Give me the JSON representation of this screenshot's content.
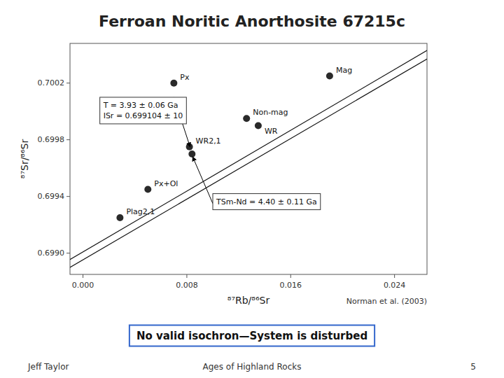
{
  "chart_data": {
    "type": "scatter",
    "title": "Ferroan Noritic Anorthosite 67215c",
    "x_label": "⁸⁷Rb/⁸⁶Sr",
    "y_label": "⁸⁷Sr/⁸⁶Sr",
    "xlim": [
      -0.001,
      0.0265
    ],
    "ylim": [
      0.69885,
      0.70048
    ],
    "xticks": [
      {
        "value": 0.0,
        "label": "0.000"
      },
      0.008,
      0.016,
      0.024
    ],
    "yticks": [
      {
        "value": 0.699,
        "label": "0.6990"
      },
      0.6994,
      0.6998,
      0.7002
    ],
    "grid": false,
    "color": "#2a2a2a",
    "x": [
      0.00285,
      0.005,
      0.0082,
      0.0084,
      0.0126,
      0.0135,
      0.019,
      0.007
    ],
    "values": [
      0.69925,
      0.69945,
      0.69975,
      0.6997,
      0.69995,
      0.6999,
      0.70025,
      0.7002
    ],
    "point_labels": [
      "Plag2,1",
      "Px+Ol",
      "WR2,1",
      null,
      "Non-mag",
      "WR",
      "Mag",
      "Px"
    ],
    "lines": [
      {
        "x": [
          -0.001,
          0.0265
        ],
        "values": [
          0.698955,
          0.70043
        ],
        "color": "#111111"
      },
      {
        "x": [
          -0.001,
          0.0265
        ],
        "values": [
          0.6989,
          0.70037
        ],
        "color": "#111111"
      }
    ],
    "annotations": [
      {
        "lines": [
          "T = 3.93 ± 0.06 Ga",
          "ISr = 0.699104 ± 10"
        ],
        "x": 0.0013,
        "y": 0.7001
      },
      {
        "lines": [
          "TSm-Nd = 4.40 ± 0.11 Ga"
        ],
        "x": 0.01,
        "y": 0.69942
      }
    ],
    "arrows": [
      {
        "x": [
          0.007,
          0.00825
        ],
        "values": [
          0.7001,
          0.69975
        ]
      },
      {
        "x": [
          0.01,
          0.00845
        ],
        "values": [
          0.69935,
          0.69968
        ]
      }
    ],
    "source": "Norman et al. (2003)",
    "banner": "No valid isochron—System is disturbed",
    "footer": [
      "Jeff Taylor",
      "Ages of Highland Rocks",
      "5"
    ]
  }
}
